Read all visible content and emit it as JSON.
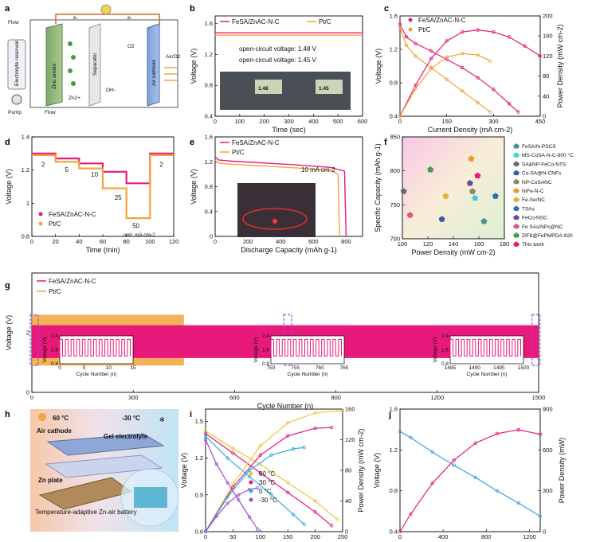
{
  "colors": {
    "fe": "#e8197a",
    "pt": "#f2a33a",
    "blue": "#3d7fd6",
    "red": "#e83a2e",
    "purple": "#9b4fd6"
  },
  "labels": {
    "a": "a",
    "b": "b",
    "c": "c",
    "d": "d",
    "e": "e",
    "f": "f",
    "g": "g",
    "h": "h",
    "i": "i",
    "j": "j"
  },
  "legend": {
    "fe": "FeSA/ZnAC-N-C",
    "pt": "Pt/C"
  },
  "panel_a": {
    "flow1": "Flow",
    "flow2": "Flow",
    "pump": "Pump",
    "reservoir": "Electrolyte reservoir",
    "anode": "Zinc anode",
    "separator": "Separator",
    "cathode": "Air cathode",
    "air": "Air/O2",
    "o2": "O2",
    "oh": "OH-",
    "zn": "Zn2+",
    "e": "e-"
  },
  "panel_b": {
    "ocv_fe": "open-circuit voltage: 1.48 V",
    "ocv_pt": "open-circuit voltage: 1.45 V",
    "photo_l": "1.48",
    "photo_r": "1.45"
  },
  "panel_d": {
    "unit": "unit: mA cm-2",
    "steps": [
      "2",
      "5",
      "10",
      "25",
      "50",
      "2"
    ]
  },
  "panel_e": {
    "note": "10 mA cm-2"
  },
  "panel_f": {
    "legend": [
      "FeSA/N-PSCS",
      "MS-CoSA-N-C-800 °C",
      "SA&NP-FeCo-NTS",
      "Co-SA@N-CNFs",
      "NP-CoSANC",
      "NiFe-N-C",
      "Fe-Se/NC",
      "TSAs",
      "FeCo-NSC",
      "Fe SAs/NPs@NC",
      "ZIF8@FePMPDA-920",
      "This work"
    ]
  },
  "panel_h": {
    "hot": "60 °C",
    "cold": "-30 °C",
    "cathode": "Air cathode",
    "gel": "Gel electrolyte",
    "zn": "Zn plate",
    "title": "Temperature-adaptive Zn-air battery"
  },
  "panel_i": {
    "series": [
      "60 °C",
      "30 °C",
      "0 °C",
      "-30 °C"
    ]
  },
  "chart_data": [
    {
      "panel": "b",
      "type": "line",
      "xlabel": "Time (sec)",
      "ylabel": "Voltage (V)",
      "xlim": [
        0,
        600
      ],
      "ylim": [
        0.4,
        1.7
      ],
      "xticks": [
        0,
        100,
        200,
        300,
        400,
        500,
        600
      ],
      "yticks": [
        0.4,
        0.8,
        1.2,
        1.6
      ],
      "series": [
        {
          "name": "FeSA/ZnAC-N-C",
          "x": [
            0,
            600
          ],
          "y": [
            1.48,
            1.48
          ]
        },
        {
          "name": "Pt/C",
          "x": [
            0,
            600
          ],
          "y": [
            1.45,
            1.45
          ]
        }
      ]
    },
    {
      "panel": "c",
      "type": "line",
      "xlabel": "Current Density (mA cm-2)",
      "ylabel": "Voltage (V)",
      "y2label": "Power Density (mW cm-2)",
      "xlim": [
        0,
        450
      ],
      "ylim": [
        0.4,
        1.6
      ],
      "y2lim": [
        0,
        200
      ],
      "xticks": [
        0,
        150,
        300,
        450
      ],
      "yticks": [
        0.4,
        0.8,
        1.2,
        1.6
      ],
      "y2ticks": [
        0,
        40,
        80,
        120,
        160,
        200
      ],
      "series": [
        {
          "name": "FeSA/ZnAC-N-C",
          "axis": "y",
          "x": [
            0,
            20,
            50,
            100,
            150,
            200,
            250,
            300,
            350,
            380
          ],
          "y": [
            1.5,
            1.35,
            1.27,
            1.18,
            1.08,
            0.98,
            0.86,
            0.72,
            0.55,
            0.45
          ]
        },
        {
          "name": "Pt/C",
          "axis": "y",
          "x": [
            0,
            20,
            50,
            100,
            150,
            200,
            250,
            290
          ],
          "y": [
            1.46,
            1.25,
            1.12,
            0.98,
            0.84,
            0.7,
            0.56,
            0.45
          ]
        },
        {
          "name": "FeSA/ZnAC-N-C",
          "axis": "y2",
          "x": [
            0,
            50,
            100,
            150,
            200,
            250,
            300,
            350,
            400,
            450
          ],
          "y": [
            0,
            62,
            115,
            150,
            168,
            172,
            168,
            158,
            140,
            120
          ]
        },
        {
          "name": "Pt/C",
          "axis": "y2",
          "x": [
            0,
            50,
            100,
            150,
            200,
            250,
            290
          ],
          "y": [
            0,
            55,
            95,
            118,
            125,
            122,
            110
          ]
        }
      ]
    },
    {
      "panel": "d",
      "type": "line",
      "xlabel": "Time (min)",
      "ylabel": "Voltage (V)",
      "xlim": [
        0,
        120
      ],
      "ylim": [
        0.8,
        1.4
      ],
      "xticks": [
        0,
        20,
        40,
        60,
        80,
        100,
        120
      ],
      "yticks": [
        0.8,
        1.0,
        1.2,
        1.4
      ],
      "series": [
        {
          "name": "FeSA/ZnAC-N-C",
          "x": [
            0,
            20,
            20,
            40,
            40,
            60,
            60,
            80,
            80,
            100,
            100,
            120
          ],
          "y": [
            1.3,
            1.3,
            1.27,
            1.27,
            1.24,
            1.24,
            1.19,
            1.19,
            1.12,
            1.12,
            1.3,
            1.3
          ]
        },
        {
          "name": "Pt/C",
          "x": [
            0,
            20,
            20,
            40,
            40,
            60,
            60,
            80,
            80,
            100,
            100,
            120
          ],
          "y": [
            1.29,
            1.29,
            1.25,
            1.25,
            1.21,
            1.21,
            1.09,
            1.09,
            0.91,
            0.91,
            1.29,
            1.29
          ]
        }
      ]
    },
    {
      "panel": "e",
      "type": "line",
      "xlabel": "Discharge Capacity (mAh g-1)",
      "ylabel": "Voltage (V)",
      "xlim": [
        0,
        900
      ],
      "ylim": [
        0,
        1.6
      ],
      "xticks": [
        0,
        200,
        400,
        600,
        800
      ],
      "yticks": [
        0,
        0.4,
        0.8,
        1.2,
        1.6
      ],
      "series": [
        {
          "name": "FeSA/ZnAC-N-C",
          "x": [
            0,
            20,
            100,
            300,
            500,
            700,
            790,
            795,
            800
          ],
          "y": [
            1.28,
            1.23,
            1.21,
            1.18,
            1.15,
            1.11,
            1.05,
            0.5,
            0
          ]
        },
        {
          "name": "Pt/C",
          "x": [
            0,
            20,
            100,
            300,
            500,
            700,
            750,
            755,
            760
          ],
          "y": [
            1.22,
            1.18,
            1.16,
            1.13,
            1.1,
            1.06,
            1.0,
            0.5,
            0
          ]
        }
      ]
    },
    {
      "panel": "f",
      "type": "scatter",
      "xlabel": "Power Density (mW cm-2)",
      "ylabel": "Specific Capacity (mAh g-1)",
      "xlim": [
        100,
        180
      ],
      "ylim": [
        700,
        850
      ],
      "xticks": [
        100,
        120,
        140,
        160,
        180
      ],
      "yticks": [
        700,
        750,
        800,
        850
      ],
      "series": [
        {
          "name": "FeSA/N-PSCS",
          "x": [
            164
          ],
          "y": [
            726
          ]
        },
        {
          "name": "MS-CoSA-N-C-800 °C",
          "x": [
            157
          ],
          "y": [
            760
          ]
        },
        {
          "name": "SA&NP-FeCo-NTS",
          "x": [
            101
          ],
          "y": [
            770
          ]
        },
        {
          "name": "Co-SA@N-CNFs",
          "x": [
            131
          ],
          "y": [
            729
          ]
        },
        {
          "name": "NP-CoSANC",
          "x": [
            155
          ],
          "y": [
            770
          ]
        },
        {
          "name": "NiFe-N-C",
          "x": [
            154
          ],
          "y": [
            818
          ]
        },
        {
          "name": "Fe-Se/NC",
          "x": [
            134
          ],
          "y": [
            763
          ]
        },
        {
          "name": "TSAs",
          "x": [
            173
          ],
          "y": [
            763
          ]
        },
        {
          "name": "FeCo-NSC",
          "x": [
            153
          ],
          "y": [
            782
          ]
        },
        {
          "name": "Fe SAs/NPs@NC",
          "x": [
            106
          ],
          "y": [
            735
          ]
        },
        {
          "name": "ZIF8@FePMPDA-920",
          "x": [
            122
          ],
          "y": [
            802
          ]
        },
        {
          "name": "This work",
          "x": [
            159
          ],
          "y": [
            793
          ]
        }
      ]
    },
    {
      "panel": "g",
      "type": "line",
      "xlabel": "Cycle Number (n)",
      "ylabel": "Voltage (V)",
      "xlim": [
        0,
        1500
      ],
      "ylim": [
        0,
        4
      ],
      "xticks": [
        0,
        300,
        600,
        900,
        1200,
        1500
      ],
      "yticks": [
        0,
        2.0
      ],
      "series": [
        {
          "name": "FeSA/ZnAC-N-C",
          "x": [
            0,
            1500
          ],
          "y_high": [
            2.25,
            2.25
          ],
          "y_low": [
            1.15,
            1.15
          ]
        },
        {
          "name": "Pt/C",
          "x": [
            0,
            450
          ],
          "y_high": [
            2.6,
            2.6
          ],
          "y_low": [
            0.9,
            0.9
          ]
        }
      ],
      "insets": [
        {
          "xlabel": "Cycle Number (n)",
          "ylabel": "Voltage (V)",
          "xlim": [
            0,
            15
          ],
          "xticks": [
            0,
            5,
            10,
            15
          ],
          "yticks": [
            0.8,
            1.6,
            2.4
          ]
        },
        {
          "xlabel": "Cycle Number (n)",
          "ylabel": "Voltage (V)",
          "xlim": [
            750,
            765
          ],
          "xticks": [
            750,
            755,
            760,
            765
          ],
          "yticks": [
            0.8,
            1.6,
            2.4
          ]
        },
        {
          "xlabel": "Cycle Number (n)",
          "ylabel": "Voltage (V)",
          "xlim": [
            1485,
            1500
          ],
          "xticks": [
            1485,
            1490,
            1495,
            1500
          ],
          "yticks": [
            0.8,
            1.6,
            2.4
          ]
        }
      ]
    },
    {
      "panel": "i",
      "type": "line",
      "xlabel": "Current Density (mA cm-2)",
      "ylabel": "Voltage (V)",
      "y2label": "Power Density (mW cm-2)",
      "xlim": [
        0,
        250
      ],
      "ylim": [
        0.6,
        1.6
      ],
      "y2lim": [
        0,
        160
      ],
      "xticks": [
        0,
        50,
        100,
        150,
        200,
        250
      ],
      "yticks": [
        0.6,
        0.9,
        1.2,
        1.5
      ],
      "y2ticks": [
        0,
        40,
        80,
        120,
        160
      ],
      "series": [
        {
          "name": "60 °C",
          "axis": "y",
          "x": [
            0,
            50,
            100,
            150,
            200,
            240
          ],
          "y": [
            1.42,
            1.28,
            1.15,
            1.0,
            0.85,
            0.7
          ]
        },
        {
          "name": "30 °C",
          "axis": "y",
          "x": [
            0,
            50,
            100,
            150,
            200,
            230
          ],
          "y": [
            1.4,
            1.24,
            1.08,
            0.92,
            0.76,
            0.65
          ]
        },
        {
          "name": "0 °C",
          "axis": "y",
          "x": [
            0,
            40,
            80,
            120,
            160,
            180
          ],
          "y": [
            1.38,
            1.2,
            1.05,
            0.9,
            0.74,
            0.66
          ]
        },
        {
          "name": "-30 °C",
          "axis": "y",
          "x": [
            0,
            20,
            40,
            60,
            80,
            95
          ],
          "y": [
            1.35,
            1.15,
            1.0,
            0.86,
            0.72,
            0.62
          ]
        },
        {
          "name": "60 °C",
          "axis": "y2",
          "x": [
            0,
            50,
            100,
            150,
            200,
            250
          ],
          "y": [
            0,
            62,
            112,
            142,
            155,
            158
          ]
        },
        {
          "name": "30 °C",
          "axis": "y2",
          "x": [
            0,
            50,
            100,
            150,
            200,
            230
          ],
          "y": [
            0,
            58,
            100,
            125,
            135,
            136
          ]
        },
        {
          "name": "0 °C",
          "axis": "y2",
          "x": [
            0,
            40,
            80,
            120,
            160,
            180
          ],
          "y": [
            0,
            45,
            80,
            100,
            108,
            110
          ]
        },
        {
          "name": "-30 °C",
          "axis": "y2",
          "x": [
            0,
            20,
            40,
            60,
            80,
            95
          ],
          "y": [
            0,
            20,
            37,
            48,
            55,
            57
          ]
        }
      ]
    },
    {
      "panel": "j",
      "type": "line",
      "xlabel": "Current (mA)",
      "ylabel": "Voltage (V)",
      "y2label": "Power Density (mW)",
      "xlim": [
        0,
        1300
      ],
      "ylim": [
        0.4,
        1.6
      ],
      "y2lim": [
        0,
        900
      ],
      "xticks": [
        0,
        400,
        800,
        1200
      ],
      "yticks": [
        0.4,
        0.8,
        1.2,
        1.6
      ],
      "y2ticks": [
        0,
        300,
        600,
        900
      ],
      "series": [
        {
          "name": "Voltage",
          "axis": "y",
          "x": [
            0,
            100,
            300,
            500,
            700,
            900,
            1100,
            1300
          ],
          "y": [
            1.38,
            1.32,
            1.18,
            1.05,
            0.93,
            0.8,
            0.68,
            0.55
          ]
        },
        {
          "name": "Power",
          "axis": "y2",
          "x": [
            0,
            100,
            300,
            500,
            700,
            900,
            1100,
            1300
          ],
          "y": [
            0,
            130,
            355,
            525,
            650,
            720,
            748,
            715
          ]
        }
      ]
    }
  ]
}
